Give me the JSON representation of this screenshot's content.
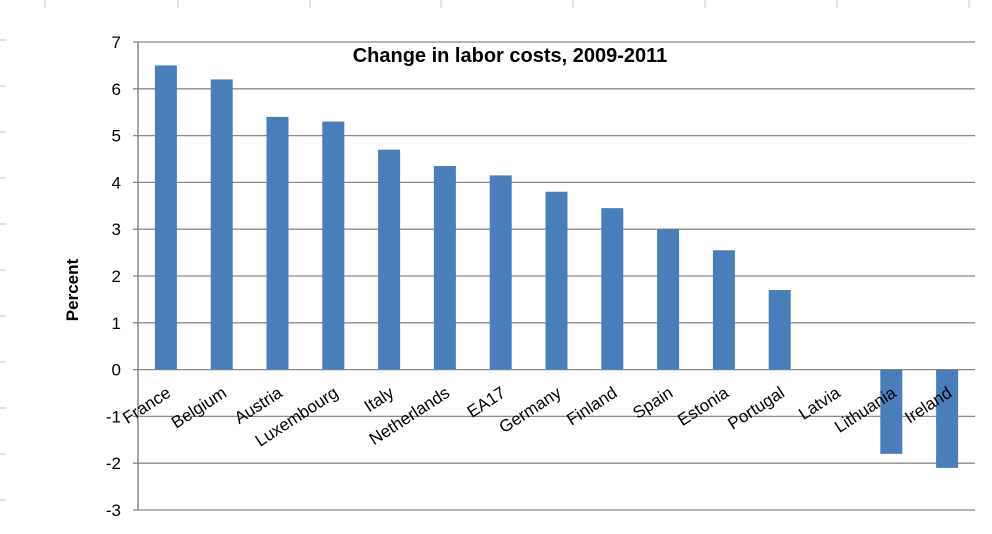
{
  "chart_data": {
    "type": "bar",
    "title": "Change in labor costs, 2009-2011",
    "xlabel": "",
    "ylabel": "Percent",
    "ylim": [
      -3,
      7
    ],
    "yticks": [
      7,
      6,
      5,
      4,
      3,
      2,
      1,
      0,
      -1,
      -2,
      -3
    ],
    "grid": true,
    "categories": [
      "France",
      "Belgium",
      "Austria",
      "Luxembourg",
      "Italy",
      "Netherlands",
      "EA17",
      "Germany",
      "Finland",
      "Spain",
      "Estonia",
      "Portugal",
      "Latvia",
      "Lithuania",
      "Ireland"
    ],
    "values": [
      6.5,
      6.2,
      5.4,
      5.3,
      4.7,
      4.35,
      4.15,
      3.8,
      3.45,
      3.0,
      2.55,
      1.7,
      0.0,
      -1.8,
      -2.1
    ],
    "bar_color": "#4a7ebb"
  }
}
